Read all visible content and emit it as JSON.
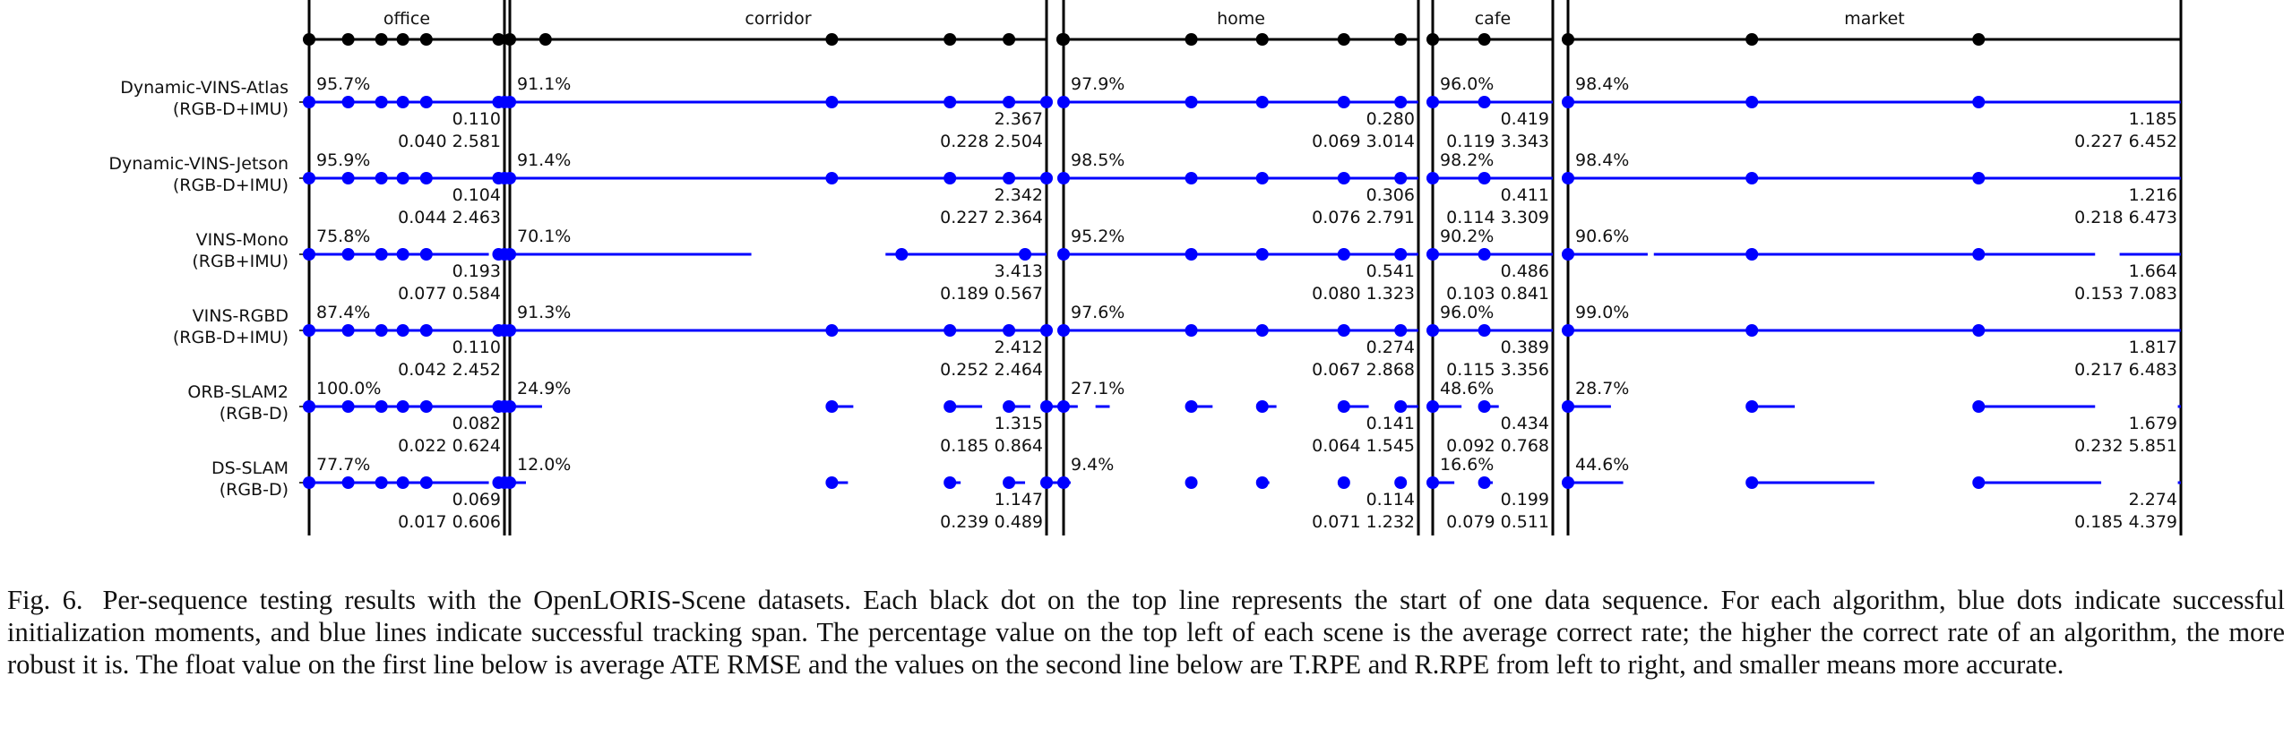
{
  "chart_data": {
    "type": "scatter",
    "scenes": [
      {
        "name": "office",
        "starts": [
          0,
          0.2,
          0.37,
          0.48,
          0.6,
          0.97,
          1.21
        ]
      },
      {
        "name": "corridor",
        "starts": [
          0,
          0.6,
          0.82,
          0.93,
          1.03
        ]
      },
      {
        "name": "home",
        "starts": [
          0,
          0.36,
          0.56,
          0.79,
          0.95
        ]
      },
      {
        "name": "cafe",
        "starts": [
          0,
          0.43
        ]
      },
      {
        "name": "market",
        "starts": [
          0,
          0.3,
          0.67
        ]
      }
    ],
    "algorithms": [
      {
        "name": "Dynamic-VINS-Atlas",
        "sensors": "(RGB-D+IMU)",
        "results": [
          {
            "rate": "95.7%",
            "ate": "0.110",
            "rpe": "0.040 2.581",
            "spans": [
              [
                0,
                1.32
              ]
            ],
            "inits": [
              0,
              0.2,
              0.37,
              0.48,
              0.6,
              0.97,
              1.21
            ]
          },
          {
            "rate": "91.1%",
            "ate": "2.367",
            "rpe": "0.228 2.504",
            "spans": [
              [
                0,
                1.0
              ]
            ],
            "inits": [
              0,
              0.6,
              0.82,
              0.93,
              1.03
            ]
          },
          {
            "rate": "97.9%",
            "ate": "0.280",
            "rpe": "0.069 3.014",
            "spans": [
              [
                0,
                1.0
              ]
            ],
            "inits": [
              0,
              0.36,
              0.56,
              0.79,
              0.95
            ]
          },
          {
            "rate": "96.0%",
            "ate": "0.419",
            "rpe": "0.119 3.343",
            "spans": [
              [
                0,
                1.0
              ]
            ],
            "inits": [
              0,
              0.43
            ]
          },
          {
            "rate": "98.4%",
            "ate": "1.185",
            "rpe": "0.227 6.452",
            "spans": [
              [
                0,
                1.0
              ]
            ],
            "inits": [
              0,
              0.3,
              0.67
            ]
          }
        ]
      },
      {
        "name": "Dynamic-VINS-Jetson",
        "sensors": "(RGB-D+IMU)",
        "results": [
          {
            "rate": "95.9%",
            "ate": "0.104",
            "rpe": "0.044 2.463",
            "spans": [
              [
                0,
                1.32
              ]
            ],
            "inits": [
              0,
              0.2,
              0.37,
              0.48,
              0.6,
              0.97,
              1.21
            ]
          },
          {
            "rate": "91.4%",
            "ate": "2.342",
            "rpe": "0.227 2.364",
            "spans": [
              [
                0,
                1.0
              ]
            ],
            "inits": [
              0,
              0.6,
              0.82,
              0.93,
              1.03
            ]
          },
          {
            "rate": "98.5%",
            "ate": "0.306",
            "rpe": "0.076 2.791",
            "spans": [
              [
                0,
                1.0
              ]
            ],
            "inits": [
              0,
              0.36,
              0.56,
              0.79,
              0.95
            ]
          },
          {
            "rate": "98.2%",
            "ate": "0.411",
            "rpe": "0.114 3.309",
            "spans": [
              [
                0,
                1.0
              ]
            ],
            "inits": [
              0,
              0.43
            ]
          },
          {
            "rate": "98.4%",
            "ate": "1.216",
            "rpe": "0.218 6.473",
            "spans": [
              [
                0,
                1.0
              ]
            ],
            "inits": [
              0,
              0.3,
              0.67
            ]
          }
        ]
      },
      {
        "name": "VINS-Mono",
        "sensors": "(RGB+IMU)",
        "results": [
          {
            "rate": "75.8%",
            "ate": "0.193",
            "rpe": "0.077 0.584",
            "spans": [
              [
                0,
                0.92
              ],
              [
                1.0,
                1.32
              ]
            ],
            "inits": [
              0,
              0.2,
              0.37,
              0.48,
              0.6,
              0.97,
              1.21
            ]
          },
          {
            "rate": "70.1%",
            "ate": "3.413",
            "rpe": "0.189 0.567",
            "spans": [
              [
                0,
                0.45
              ],
              [
                0.7,
                1.0
              ]
            ],
            "inits": [
              0,
              0.73,
              0.96
            ]
          },
          {
            "rate": "95.2%",
            "ate": "0.541",
            "rpe": "0.080 1.323",
            "spans": [
              [
                0,
                1.0
              ]
            ],
            "inits": [
              0,
              0.36,
              0.56,
              0.79,
              0.95
            ]
          },
          {
            "rate": "90.2%",
            "ate": "0.486",
            "rpe": "0.103 0.841",
            "spans": [
              [
                0,
                1.0
              ]
            ],
            "inits": [
              0,
              0.43
            ]
          },
          {
            "rate": "90.6%",
            "ate": "1.664",
            "rpe": "0.153 7.083",
            "spans": [
              [
                0,
                0.13
              ],
              [
                0.14,
                0.86
              ],
              [
                0.9,
                1.0
              ]
            ],
            "inits": [
              0,
              0.3,
              0.67
            ]
          }
        ]
      },
      {
        "name": "VINS-RGBD",
        "sensors": "(RGB-D+IMU)",
        "results": [
          {
            "rate": "87.4%",
            "ate": "0.110",
            "rpe": "0.042 2.452",
            "spans": [
              [
                0,
                1.32
              ]
            ],
            "inits": [
              0,
              0.2,
              0.37,
              0.48,
              0.6,
              0.97,
              1.24
            ]
          },
          {
            "rate": "91.3%",
            "ate": "2.412",
            "rpe": "0.252 2.464",
            "spans": [
              [
                0,
                1.0
              ]
            ],
            "inits": [
              0,
              0.6,
              0.82,
              0.93,
              1.03
            ]
          },
          {
            "rate": "97.6%",
            "ate": "0.274",
            "rpe": "0.067 2.868",
            "spans": [
              [
                0,
                1.0
              ]
            ],
            "inits": [
              0,
              0.36,
              0.56,
              0.79,
              0.95
            ]
          },
          {
            "rate": "96.0%",
            "ate": "0.389",
            "rpe": "0.115 3.356",
            "spans": [
              [
                0,
                1.0
              ]
            ],
            "inits": [
              0,
              0.43
            ]
          },
          {
            "rate": "99.0%",
            "ate": "1.817",
            "rpe": "0.217 6.483",
            "spans": [
              [
                0,
                1.0
              ]
            ],
            "inits": [
              0,
              0.3,
              0.67
            ]
          }
        ]
      },
      {
        "name": "ORB-SLAM2",
        "sensors": "(RGB-D)",
        "results": [
          {
            "rate": "100.0%",
            "ate": "0.082",
            "rpe": "0.022 0.624",
            "spans": [
              [
                0,
                1.32
              ]
            ],
            "inits": [
              0,
              0.2,
              0.37,
              0.48,
              0.6,
              0.97,
              1.21
            ]
          },
          {
            "rate": "24.9%",
            "ate": "1.315",
            "rpe": "0.185 0.864",
            "spans": [
              [
                0,
                0.06
              ],
              [
                0.6,
                0.64
              ],
              [
                0.82,
                0.88
              ],
              [
                0.93,
                0.97
              ],
              [
                1.03,
                1.09
              ]
            ],
            "inits": [
              0,
              0.6,
              0.82,
              0.93,
              1.03
            ]
          },
          {
            "rate": "27.1%",
            "ate": "0.141",
            "rpe": "0.064 1.545",
            "spans": [
              [
                0,
                0.04
              ],
              [
                0.09,
                0.13
              ],
              [
                0.36,
                0.42
              ],
              [
                0.56,
                0.6
              ],
              [
                0.79,
                0.86
              ],
              [
                0.95,
                1.0
              ]
            ],
            "inits": [
              0,
              0.36,
              0.56,
              0.79,
              0.95
            ]
          },
          {
            "rate": "48.6%",
            "ate": "0.434",
            "rpe": "0.092 0.768",
            "spans": [
              [
                0,
                0.24
              ],
              [
                0.43,
                0.55
              ]
            ],
            "inits": [
              0,
              0.43
            ]
          },
          {
            "rate": "28.7%",
            "ate": "1.679",
            "rpe": "0.232 5.851",
            "spans": [
              [
                0,
                0.07
              ],
              [
                0.3,
                0.37
              ],
              [
                0.67,
                0.86
              ],
              [
                0.995,
                1.0
              ]
            ],
            "inits": [
              0,
              0.3,
              0.67
            ]
          }
        ]
      },
      {
        "name": "DS-SLAM",
        "sensors": "(RGB-D)",
        "results": [
          {
            "rate": "77.7%",
            "ate": "0.069",
            "rpe": "0.017 0.606",
            "spans": [
              [
                0,
                0.92
              ],
              [
                1.0,
                1.32
              ]
            ],
            "inits": [
              0,
              0.2,
              0.37,
              0.48,
              0.6,
              0.97,
              1.21
            ]
          },
          {
            "rate": "12.0%",
            "ate": "1.147",
            "rpe": "0.239 0.489",
            "spans": [
              [
                0,
                0.03
              ],
              [
                0.6,
                0.63
              ],
              [
                0.82,
                0.84
              ],
              [
                0.93,
                0.96
              ],
              [
                1.03,
                1.06
              ]
            ],
            "inits": [
              0,
              0.6,
              0.82,
              0.93,
              1.03
            ]
          },
          {
            "rate": "9.4%",
            "ate": "0.114",
            "rpe": "0.071 1.232",
            "spans": [
              [
                0,
                0.02
              ],
              [
                0.56,
                0.58
              ]
            ],
            "inits": [
              0,
              0.36,
              0.56,
              0.79,
              0.95
            ]
          },
          {
            "rate": "16.6%",
            "ate": "0.199",
            "rpe": "0.079 0.511",
            "spans": [
              [
                0,
                0.18
              ],
              [
                0.43,
                0.5
              ]
            ],
            "inits": [
              0,
              0.43
            ]
          },
          {
            "rate": "44.6%",
            "ate": "2.274",
            "rpe": "0.185 4.379",
            "spans": [
              [
                0,
                0.09
              ],
              [
                0.3,
                0.5
              ],
              [
                0.67,
                0.87
              ],
              [
                0.995,
                1.0
              ]
            ],
            "inits": [
              0,
              0.3,
              0.67
            ]
          }
        ]
      }
    ]
  },
  "caption": {
    "label": "Fig. 6.",
    "text": "Per-sequence testing results with the OpenLORIS-Scene datasets. Each black dot on the top line represents the start of one data sequence. For each algorithm, blue dots indicate successful initialization moments, and blue lines indicate successful tracking span. The percentage value on the top left of each scene is the average correct rate; the higher the correct rate of an algorithm, the more robust it is. The float value on the first line below is average ATE RMSE and the values on the second line below are T.RPE and R.RPE from left to right, and smaller means more accurate."
  },
  "colors": {
    "track": "#0000ff",
    "start": "#000000",
    "axis": "#000000"
  }
}
